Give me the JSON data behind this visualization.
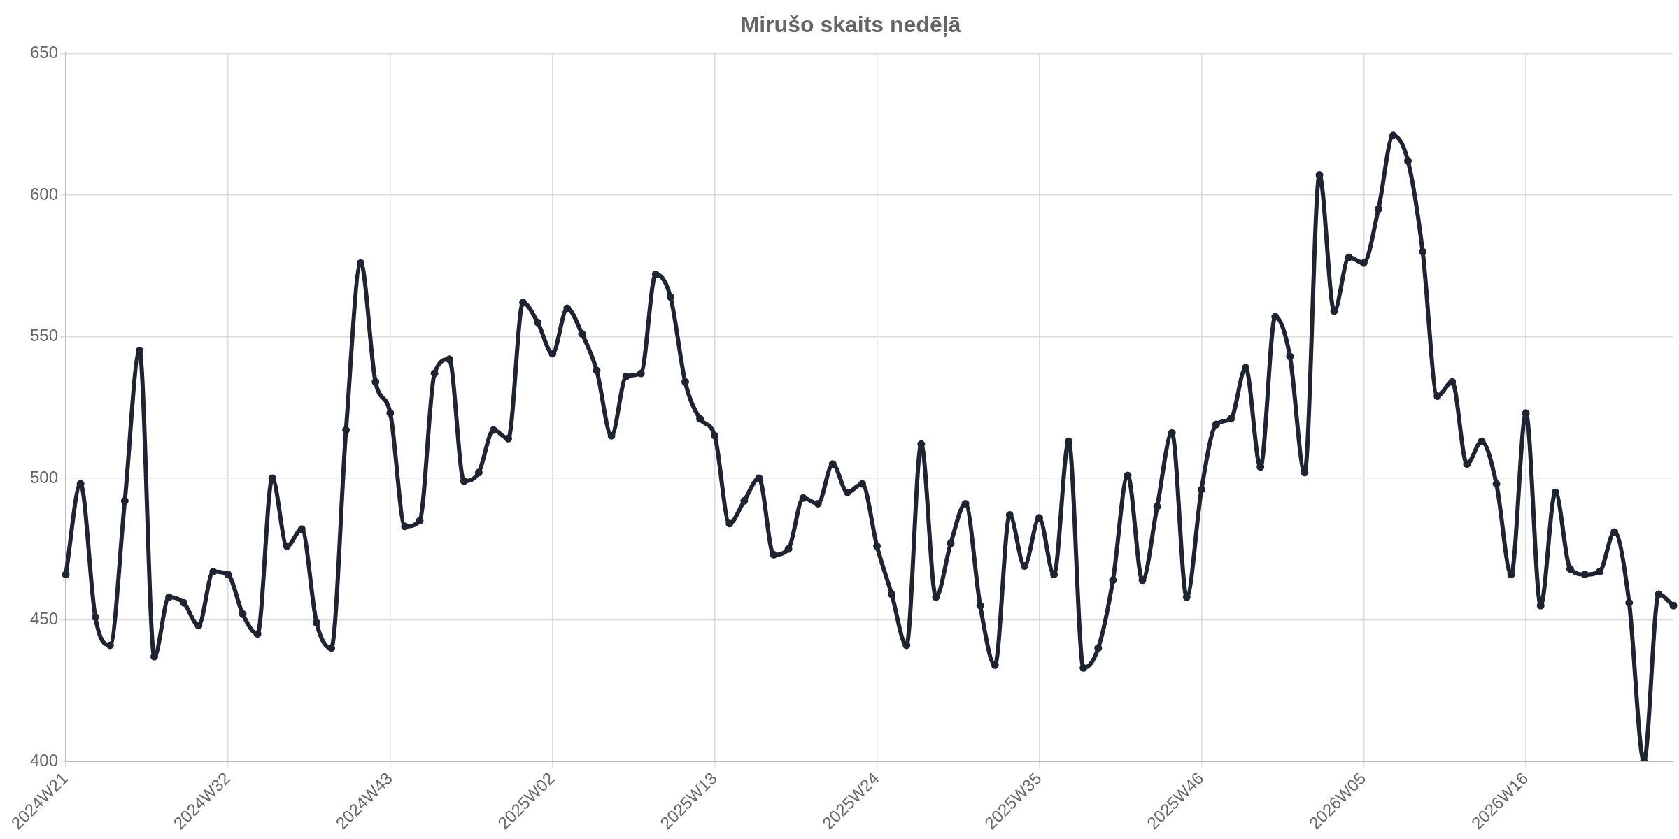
{
  "chart_data": {
    "type": "line",
    "title": "Mirušo skaits nedēļā",
    "categories": [
      "2024W21",
      null,
      null,
      null,
      null,
      null,
      null,
      null,
      null,
      null,
      null,
      "2024W32",
      null,
      null,
      null,
      null,
      null,
      null,
      null,
      null,
      null,
      null,
      "2024W43",
      null,
      null,
      null,
      null,
      null,
      null,
      null,
      null,
      null,
      null,
      "2025W02",
      null,
      null,
      null,
      null,
      null,
      null,
      null,
      null,
      null,
      null,
      "2025W13",
      null,
      null,
      null,
      null,
      null,
      null,
      null,
      null,
      null,
      null,
      "2025W24",
      null,
      null,
      null,
      null,
      null,
      null,
      null,
      null,
      null,
      null,
      "2025W35",
      null,
      null,
      null,
      null,
      null,
      null,
      null,
      null,
      null,
      null,
      "2025W46",
      null,
      null,
      null,
      null,
      null,
      null,
      null,
      null,
      null,
      null,
      "2026W05",
      null,
      null,
      null,
      null,
      null,
      null,
      null,
      null,
      null,
      null,
      "2026W16",
      null,
      null,
      null,
      null,
      null,
      null,
      null,
      null,
      null,
      null
    ],
    "series": [
      {
        "color": "#1f2433",
        "values": [
          466,
          498,
          451,
          441,
          492,
          545,
          437,
          458,
          456,
          448,
          467,
          466,
          452,
          445,
          500,
          476,
          482,
          449,
          440,
          517,
          576,
          534,
          523,
          483,
          485,
          537,
          542,
          499,
          502,
          517,
          514,
          562,
          555,
          544,
          560,
          551,
          538,
          515,
          536,
          537,
          572,
          564,
          534,
          521,
          515,
          484,
          492,
          500,
          473,
          475,
          493,
          491,
          505,
          495,
          498,
          476,
          459,
          441,
          512,
          458,
          477,
          491,
          455,
          434,
          487,
          469,
          486,
          466,
          513,
          433,
          440,
          464,
          501,
          464,
          490,
          516,
          458,
          496,
          519,
          521,
          539,
          504,
          557,
          543,
          502,
          607,
          559,
          578,
          576,
          595,
          621,
          612,
          580,
          529,
          534,
          505,
          513,
          498,
          466,
          523,
          455,
          495,
          468,
          466,
          467,
          481,
          456,
          400,
          459,
          455
        ]
      }
    ],
    "ylim": [
      400,
      650
    ],
    "yticks": [
      400,
      450,
      500,
      550,
      600,
      650
    ],
    "grid": true,
    "legend": false,
    "marker": "circle",
    "line_style": "solid"
  }
}
